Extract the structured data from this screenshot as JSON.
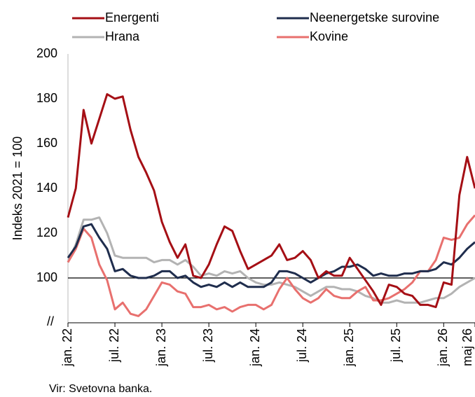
{
  "chart_data": {
    "type": "line",
    "ylabel": "Indeks 2021 = 100",
    "source": "Vir: Svetovna banka.",
    "axis_break_label": "//",
    "reference_line": 100,
    "ylim": [
      80,
      200
    ],
    "yticks": [
      100,
      120,
      140,
      160,
      180,
      200
    ],
    "categories": [
      "jan. 22",
      null,
      null,
      null,
      null,
      null,
      "jul. 22",
      null,
      null,
      null,
      null,
      null,
      "jan. 23",
      null,
      null,
      null,
      null,
      null,
      "jul. 23",
      null,
      null,
      null,
      null,
      null,
      "jan. 24",
      null,
      null,
      null,
      null,
      null,
      "jul. 24",
      null,
      null,
      null,
      null,
      null,
      "jan. 25",
      null,
      null,
      null,
      null,
      null,
      "jul. 25",
      null,
      null,
      null,
      null,
      null,
      "jan. 26",
      null,
      null,
      null,
      "maj 26"
    ],
    "series": [
      {
        "name": "Energenti",
        "color": "#a50f15",
        "values": [
          127,
          140,
          175,
          160,
          171,
          182,
          180,
          181,
          166,
          154,
          147,
          139,
          125,
          116,
          109,
          115,
          101,
          100,
          106,
          115,
          123,
          121,
          112,
          104,
          106,
          108,
          110,
          115,
          108,
          109,
          112,
          108,
          100,
          103,
          101,
          101,
          109,
          104,
          99,
          94,
          88,
          97,
          96,
          93,
          92,
          88,
          88,
          87,
          98,
          97,
          137,
          154,
          140
        ]
      },
      {
        "name": "Neenergetske surovine",
        "color": "#1f2d4d",
        "values": [
          109,
          114,
          123,
          124,
          118,
          113,
          103,
          104,
          101,
          100,
          100,
          101,
          103,
          103,
          100,
          101,
          98,
          96,
          97,
          96,
          98,
          96,
          98,
          96,
          96,
          96,
          98,
          103,
          103,
          102,
          100,
          98,
          100,
          102,
          103,
          105,
          105,
          106,
          104,
          101,
          102,
          101,
          101,
          102,
          102,
          103,
          103,
          104,
          107,
          106,
          109,
          113,
          116
        ]
      },
      {
        "name": "Hrana",
        "color": "#b3b3b3",
        "values": [
          107,
          115,
          126,
          126,
          127,
          120,
          110,
          109,
          109,
          109,
          109,
          107,
          108,
          108,
          106,
          108,
          105,
          101,
          102,
          101,
          103,
          102,
          103,
          100,
          98,
          97,
          97,
          98,
          97,
          96,
          94,
          92,
          94,
          96,
          96,
          95,
          95,
          94,
          92,
          91,
          89,
          89,
          90,
          89,
          89,
          89,
          90,
          91,
          91,
          93,
          96,
          98,
          100
        ]
      },
      {
        "name": "Kovine",
        "color": "#e8706e",
        "values": [
          107,
          113,
          122,
          118,
          106,
          99,
          86,
          89,
          84,
          83,
          86,
          92,
          98,
          97,
          94,
          93,
          87,
          87,
          88,
          86,
          87,
          85,
          87,
          88,
          88,
          86,
          88,
          95,
          100,
          95,
          91,
          89,
          91,
          95,
          92,
          91,
          91,
          94,
          96,
          90,
          90,
          91,
          93,
          95,
          98,
          103,
          103,
          108,
          118,
          117,
          118,
          124,
          128
        ]
      }
    ]
  }
}
